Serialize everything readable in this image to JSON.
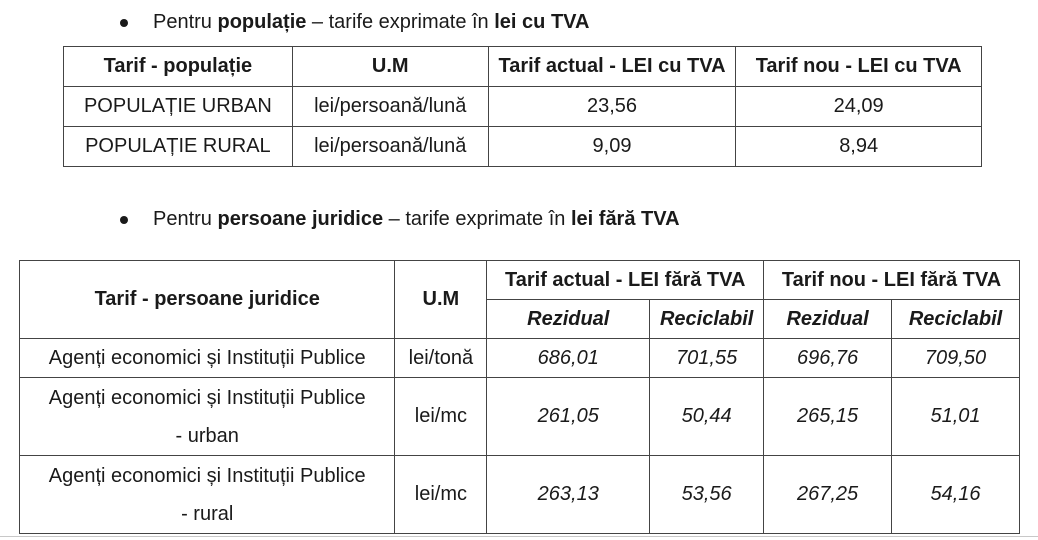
{
  "section1": {
    "prefix": "Pentru ",
    "bold1": "populație",
    "middle": " – tarife exprimate în ",
    "bold2": "lei cu TVA"
  },
  "table1": {
    "headers": [
      "Tarif - populație",
      "U.M",
      "Tarif actual - LEI cu TVA",
      "Tarif nou - LEI cu TVA"
    ],
    "rows": [
      [
        "POPULAȚIE URBAN",
        "lei/persoană/lună",
        "23,56",
        "24,09"
      ],
      [
        "POPULAȚIE RURAL",
        "lei/persoană/lună",
        "9,09",
        "8,94"
      ]
    ]
  },
  "section2": {
    "prefix": "Pentru ",
    "bold1": "persoane juridice",
    "middle": " – tarife exprimate în ",
    "bold2": "lei fără TVA"
  },
  "table2": {
    "header_tarif": "Tarif - persoane juridice",
    "header_um": "U.M",
    "group_actual": "Tarif actual - LEI fără TVA",
    "group_nou": "Tarif nou - LEI fără TVA",
    "sub": [
      "Rezidual",
      "Reciclabil",
      "Rezidual",
      "Reciclabil"
    ],
    "rows": [
      {
        "label1": "Agenți economici și Instituții Publice",
        "label2": "",
        "um": "lei/tonă",
        "v": [
          "686,01",
          "701,55",
          "696,76",
          "709,50"
        ]
      },
      {
        "label1": "Agenți economici și Instituții Publice",
        "label2": "- urban",
        "um": "lei/mc",
        "v": [
          "261,05",
          "50,44",
          "265,15",
          "51,01"
        ]
      },
      {
        "label1": "Agenți economici și Instituții Publice",
        "label2": "- rural",
        "um": "lei/mc",
        "v": [
          "263,13",
          "53,56",
          "267,25",
          "54,16"
        ]
      }
    ]
  }
}
